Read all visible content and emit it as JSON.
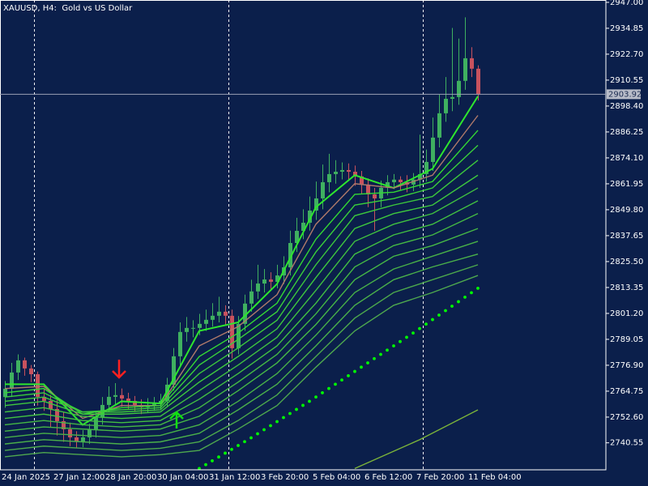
{
  "chart_data": {
    "type": "candlestick",
    "title": "XAUUSD, H4:  Gold vs US Dollar",
    "categories": [
      "24 Jan 2025",
      null,
      null,
      null,
      null,
      null,
      null,
      null,
      "27 Jan 12:00",
      null,
      null,
      null,
      null,
      null,
      null,
      null,
      "28 Jan 20:00",
      null,
      null,
      null,
      null,
      null,
      null,
      null,
      "30 Jan 04:00",
      null,
      null,
      null,
      null,
      null,
      null,
      null,
      "31 Jan 12:00",
      null,
      null,
      null,
      null,
      null,
      null,
      null,
      "3 Feb 20:00",
      null,
      null,
      null,
      null,
      null,
      null,
      null,
      "5 Feb 04:00",
      null,
      null,
      null,
      null,
      null,
      null,
      null,
      "6 Feb 12:00",
      null,
      null,
      null,
      null,
      null,
      null,
      null,
      "7 Feb 20:00",
      null,
      null,
      null,
      null,
      null,
      null,
      null,
      "11 Feb 04:00",
      null
    ],
    "candles": {
      "up_color": "#3fb060",
      "down_color": "#c8525e",
      "open": [
        2762.0,
        2765.9,
        2773.5,
        2779.2,
        2775.4,
        2772.7,
        2762.1,
        2760.2,
        2756.4,
        2750.7,
        2746.9,
        2743.1,
        2741.2,
        2743.1,
        2746.9,
        2752.6,
        2758.3,
        2762.1,
        2762.9,
        2761.3,
        2760.2,
        2758.3,
        2757.2,
        2758.3,
        2759.1,
        2760.2,
        2767.8,
        2781.1,
        2792.5,
        2794.4,
        2794.4,
        2796.3,
        2798.2,
        2800.1,
        2802.0,
        2800.1,
        2784.9,
        2796.3,
        2805.8,
        2811.5,
        2815.2,
        2817.1,
        2816.0,
        2819.0,
        2822.8,
        2834.2,
        2839.9,
        2843.7,
        2849.4,
        2855.1,
        2862.7,
        2866.5,
        2867.6,
        2868.4,
        2867.6,
        2865.4,
        2861.6,
        2857.0,
        2855.1,
        2860.1,
        2862.7,
        2863.9,
        2862.7,
        2861.6,
        2863.9,
        2866.5,
        2872.2,
        2883.6,
        2895.0,
        2901.8,
        2902.6,
        2910.2,
        2920.8,
        2915.9
      ],
      "high": [
        2769.5,
        2778.0,
        2782.0,
        2780.5,
        2777.0,
        2774.0,
        2766.0,
        2763.0,
        2760.5,
        2755.0,
        2750.0,
        2746.0,
        2746.5,
        2749.5,
        2755.0,
        2762.0,
        2767.0,
        2768.5,
        2766.0,
        2764.0,
        2762.5,
        2761.0,
        2761.5,
        2762.0,
        2763.5,
        2771.0,
        2785.0,
        2797.0,
        2799.5,
        2798.0,
        2801.0,
        2803.0,
        2806.0,
        2809.0,
        2805.0,
        2803.0,
        2800.0,
        2810.0,
        2817.0,
        2824.0,
        2822.0,
        2820.5,
        2824.0,
        2828.0,
        2840.0,
        2846.0,
        2850.0,
        2856.0,
        2863.0,
        2871.0,
        2876.0,
        2873.0,
        2872.0,
        2871.5,
        2870.5,
        2868.0,
        2864.5,
        2860.0,
        2863.5,
        2866.0,
        2866.5,
        2865.5,
        2866.0,
        2867.0,
        2885.0,
        2878.0,
        2893.0,
        2904.0,
        2912.0,
        2935.0,
        2930.0,
        2940.0,
        2926.0,
        2917.5
      ],
      "low": [
        2757.0,
        2762.0,
        2770.0,
        2772.0,
        2769.0,
        2758.0,
        2755.5,
        2748.0,
        2744.0,
        2741.0,
        2739.0,
        2738.0,
        2738.5,
        2740.0,
        2743.0,
        2749.0,
        2755.0,
        2758.5,
        2757.5,
        2756.5,
        2755.0,
        2754.0,
        2754.5,
        2755.5,
        2756.0,
        2757.5,
        2765.0,
        2777.0,
        2788.0,
        2790.0,
        2791.0,
        2793.0,
        2795.0,
        2797.0,
        2796.0,
        2780.0,
        2782.0,
        2793.0,
        2802.0,
        2808.0,
        2811.0,
        2812.0,
        2813.0,
        2815.0,
        2819.0,
        2830.0,
        2836.0,
        2840.0,
        2845.0,
        2850.0,
        2858.0,
        2862.0,
        2864.0,
        2863.5,
        2861.0,
        2857.0,
        2851.0,
        2840.0,
        2851.0,
        2856.5,
        2859.5,
        2859.0,
        2858.0,
        2858.5,
        2860.0,
        2863.0,
        2868.0,
        2879.0,
        2891.0,
        2896.0,
        2899.0,
        2906.0,
        2912.0,
        2901.0
      ],
      "close": [
        2765.9,
        2773.5,
        2779.2,
        2775.4,
        2772.7,
        2762.1,
        2760.2,
        2756.4,
        2750.7,
        2746.9,
        2743.1,
        2741.2,
        2743.1,
        2746.9,
        2752.6,
        2758.3,
        2762.1,
        2762.9,
        2761.3,
        2760.2,
        2758.3,
        2757.2,
        2758.3,
        2759.1,
        2760.2,
        2767.8,
        2781.1,
        2792.5,
        2794.4,
        2794.4,
        2796.3,
        2798.2,
        2800.1,
        2802.0,
        2800.1,
        2784.9,
        2796.3,
        2805.8,
        2811.5,
        2815.2,
        2817.1,
        2816.0,
        2819.0,
        2822.8,
        2834.2,
        2839.9,
        2843.7,
        2849.4,
        2855.1,
        2862.7,
        2866.5,
        2867.6,
        2868.4,
        2867.6,
        2865.4,
        2861.6,
        2857.0,
        2855.1,
        2860.1,
        2862.7,
        2863.9,
        2862.7,
        2861.6,
        2863.9,
        2866.5,
        2872.2,
        2883.6,
        2895.0,
        2901.8,
        2902.6,
        2910.2,
        2920.8,
        2915.9,
        2903.9
      ]
    },
    "series": [
      {
        "color": "#2ee62e",
        "x": [
          0,
          6,
          12,
          18,
          24,
          30,
          36,
          42,
          48,
          54,
          60,
          66,
          73
        ],
        "values": [
          2768,
          2768,
          2749,
          2760,
          2759,
          2793,
          2797,
          2815,
          2851,
          2866,
          2860,
          2869,
          2903
        ]
      },
      {
        "color": "#b07a6a",
        "x": [
          0,
          6,
          12,
          18,
          24,
          30,
          36,
          42,
          48,
          54,
          60,
          66,
          73
        ],
        "values": [
          2766,
          2767,
          2752,
          2758,
          2758,
          2786,
          2795,
          2810,
          2843,
          2862,
          2860,
          2866,
          2894
        ]
      },
      {
        "color": "#34d834",
        "x": [
          0,
          6,
          12,
          18,
          24,
          30,
          36,
          42,
          48,
          54,
          60,
          66,
          73
        ],
        "values": [
          2764,
          2766,
          2754,
          2757,
          2758,
          2781,
          2792,
          2806,
          2836,
          2857,
          2858,
          2863,
          2887
        ]
      },
      {
        "color": "#3ad03a",
        "x": [
          0,
          6,
          12,
          18,
          24,
          30,
          36,
          42,
          48,
          54,
          60,
          66,
          73
        ],
        "values": [
          2762,
          2764,
          2755,
          2756,
          2757,
          2777,
          2789,
          2802,
          2830,
          2852,
          2855,
          2860,
          2880
        ]
      },
      {
        "color": "#3cc83c",
        "x": [
          0,
          6,
          12,
          18,
          24,
          30,
          36,
          42,
          48,
          54,
          60,
          66,
          73
        ],
        "values": [
          2760,
          2762,
          2755,
          2755,
          2756,
          2773,
          2785,
          2798,
          2824,
          2847,
          2852,
          2856,
          2873
        ]
      },
      {
        "color": "#3ec83e",
        "x": [
          0,
          6,
          12,
          18,
          24,
          30,
          36,
          42,
          48,
          54,
          60,
          66,
          73
        ],
        "values": [
          2758,
          2760,
          2754,
          2754,
          2755,
          2769,
          2781,
          2794,
          2818,
          2841,
          2848,
          2852,
          2866
        ]
      },
      {
        "color": "#40c040",
        "x": [
          0,
          6,
          12,
          18,
          24,
          30,
          36,
          42,
          48,
          54,
          60,
          66,
          73
        ],
        "values": [
          2755,
          2757,
          2753,
          2752,
          2753,
          2765,
          2777,
          2790,
          2812,
          2835,
          2843,
          2848,
          2860
        ]
      },
      {
        "color": "#42c042",
        "x": [
          0,
          6,
          12,
          18,
          24,
          30,
          36,
          42,
          48,
          54,
          60,
          66,
          73
        ],
        "values": [
          2752,
          2754,
          2751,
          2750,
          2751,
          2761,
          2773,
          2786,
          2806,
          2829,
          2838,
          2843,
          2854
        ]
      },
      {
        "color": "#44b844",
        "x": [
          0,
          6,
          12,
          18,
          24,
          30,
          36,
          42,
          48,
          54,
          60,
          66,
          73
        ],
        "values": [
          2749,
          2751,
          2749,
          2748,
          2749,
          2757,
          2769,
          2782,
          2801,
          2823,
          2833,
          2838,
          2848
        ]
      },
      {
        "color": "#46b846",
        "x": [
          0,
          6,
          12,
          18,
          24,
          30,
          36,
          42,
          48,
          54,
          60,
          66,
          73
        ],
        "values": [
          2746,
          2748,
          2747,
          2746,
          2747,
          2753,
          2765,
          2778,
          2796,
          2817,
          2828,
          2833,
          2841
        ]
      },
      {
        "color": "#48b048",
        "x": [
          0,
          6,
          12,
          18,
          24,
          30,
          36,
          42,
          48,
          54,
          60,
          66,
          73
        ],
        "values": [
          2743,
          2745,
          2744,
          2743,
          2744,
          2749,
          2760,
          2773,
          2791,
          2811,
          2822,
          2828,
          2835
        ]
      },
      {
        "color": "#4ab04a",
        "x": [
          0,
          6,
          12,
          18,
          24,
          30,
          36,
          42,
          48,
          54,
          60,
          66,
          73
        ],
        "values": [
          2740,
          2742,
          2741,
          2740,
          2741,
          2745,
          2756,
          2768,
          2786,
          2805,
          2817,
          2823,
          2829
        ]
      },
      {
        "color": "#4ca84c",
        "x": [
          0,
          6,
          12,
          18,
          24,
          30,
          36,
          42,
          48,
          54,
          60,
          66,
          73
        ],
        "values": [
          2737,
          2739,
          2738,
          2737,
          2738,
          2741,
          2751,
          2763,
          2781,
          2799,
          2811,
          2817,
          2824
        ]
      },
      {
        "color": "#4ea84e",
        "x": [
          0,
          6,
          12,
          18,
          24,
          30,
          36,
          42,
          48,
          54,
          60,
          66,
          73
        ],
        "values": [
          2734,
          2736,
          2735,
          2734,
          2735,
          2737,
          2747,
          2758,
          2776,
          2793,
          2805,
          2811,
          2819
        ]
      },
      {
        "color": "#00ff00",
        "style": "dotted",
        "x": [
          30,
          31,
          32,
          33,
          34,
          35,
          36,
          37,
          38,
          39,
          40,
          41,
          42,
          43,
          44,
          45,
          46,
          47,
          48,
          49,
          50,
          51,
          52,
          53,
          54,
          55,
          56,
          57,
          58,
          59,
          60,
          61,
          62,
          63,
          64,
          65,
          66,
          67,
          68,
          69,
          70,
          71,
          72,
          73
        ],
        "values": [
          2728.5,
          2730.3,
          2732.1,
          2733.9,
          2735.7,
          2737.5,
          2739.3,
          2741.1,
          2742.9,
          2744.8,
          2746.7,
          2748.6,
          2750.5,
          2752.4,
          2754.3,
          2756.2,
          2758.1,
          2760.0,
          2762.0,
          2764.0,
          2766.0,
          2768.0,
          2770.0,
          2772.0,
          2774.0,
          2776.0,
          2778.0,
          2780.0,
          2782.0,
          2784.0,
          2786.0,
          2788.0,
          2790.0,
          2792.0,
          2794.1,
          2796.2,
          2798.3,
          2800.4,
          2802.5,
          2804.6,
          2806.7,
          2808.8,
          2810.9,
          2813.0
        ]
      },
      {
        "color": "#7bb33a",
        "x": [
          54,
          64,
          73
        ],
        "values": [
          2728.5,
          2742,
          2756
        ]
      }
    ],
    "ylim": [
      2727.9,
      2948.1
    ],
    "yticks": [
      {
        "value": 2947,
        "label": "2947.00"
      },
      2934.85,
      {
        "value": 2922.7,
        "label": "2922.70"
      },
      2910.55,
      {
        "value": 2898.4,
        "label": "2898.40"
      },
      2886.25,
      {
        "value": 2874.1,
        "label": "2874.10"
      },
      2861.95,
      {
        "value": 2849.8,
        "label": "2849.80"
      },
      2837.65,
      {
        "value": 2825.5,
        "label": "2825.50"
      },
      2813.35,
      {
        "value": 2801.2,
        "label": "2801.20"
      },
      2789.05,
      {
        "value": 2776.9,
        "label": "2776.90"
      },
      2764.75,
      {
        "value": 2752.6,
        "label": "2752.60"
      },
      2740.55
    ],
    "current_price": 2903.92,
    "grid": false
  }
}
